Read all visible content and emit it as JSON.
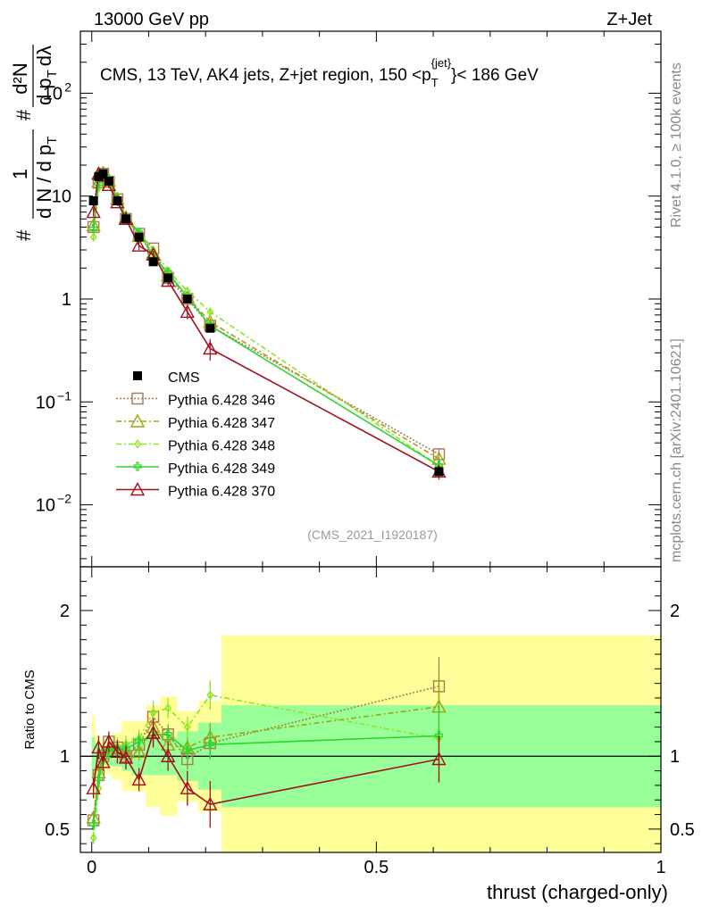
{
  "header": {
    "left": "13000 GeV pp",
    "right": "Z+Jet"
  },
  "side": {
    "rivet": "Rivet 4.1.0, ≥ 100k events",
    "mcplots": "mcplots.cern.ch [arXiv:2401.10621]"
  },
  "chart_data": {
    "type": "line",
    "title": "CMS, 13 TeV, AK4 jets, Z+jet region, 150 <p_T^{jet}< 186 GeV",
    "title_parts": {
      "prefix": "CMS, 13 TeV, AK4 jets, Z+jet region, 150 <p",
      "sup": "{jet}",
      "sub": "T",
      "suffix": "}< 186 GeV"
    },
    "analysis": "(CMS_2021_I1920187)",
    "xlabel": "thrust (charged-only)",
    "ylabel_main": "#frac{1}{dN/dp_T}#frac{d²N}{dp_T dλ}",
    "ylabel_parts": {
      "frac1_num": "1",
      "frac1_den": "d N / d p",
      "frac1_den_sub": "T",
      "frac2_num": "d²N",
      "frac2_den": "d p",
      "frac2_den_sub": "T",
      "frac2_den_tail": "dλ",
      "hash": "#"
    },
    "ylabel_ratio": "Ratio to CMS",
    "xlim": [
      -0.02,
      1.0
    ],
    "ylim_main": [
      0.0025,
      400
    ],
    "ylim_ratio": [
      0.34,
      2.3
    ],
    "x_ticks": [
      0,
      0.5,
      1
    ],
    "x_tick_labels": [
      "0",
      "0.5",
      "1"
    ],
    "y_ticks_main": [
      {
        "value": 0.01,
        "base": "10",
        "exp": "−2"
      },
      {
        "value": 0.1,
        "base": "10",
        "exp": "−1"
      },
      {
        "value": 1,
        "base": "1",
        "exp": ""
      },
      {
        "value": 10,
        "base": "10",
        "exp": ""
      },
      {
        "value": 100,
        "base": "10",
        "exp": "2"
      }
    ],
    "y_ticks_ratio": [
      {
        "value": 0.5,
        "label": "0.5"
      },
      {
        "value": 1,
        "label": "1"
      },
      {
        "value": 2,
        "label": "2"
      }
    ],
    "x": [
      0.003,
      0.012,
      0.02,
      0.03,
      0.045,
      0.06,
      0.083,
      0.108,
      0.134,
      0.168,
      0.208,
      0.61
    ],
    "bins": [
      0.0,
      0.006,
      0.016,
      0.025,
      0.036,
      0.053,
      0.07,
      0.095,
      0.12,
      0.15,
      0.187,
      0.228,
      1.0
    ],
    "data": {
      "name": "CMS",
      "values": [
        9.0,
        15.5,
        16.5,
        14.0,
        9.0,
        6.0,
        4.0,
        2.3,
        1.6,
        1.0,
        0.52,
        0.021
      ],
      "stat_band": [
        0.13,
        0.09,
        0.06,
        0.06,
        0.07,
        0.1,
        0.13,
        0.13,
        0.13,
        0.17,
        0.23,
        0.35
      ],
      "total_band": [
        0.28,
        0.14,
        0.11,
        0.12,
        0.16,
        0.24,
        0.24,
        0.35,
        0.41,
        0.31,
        0.38,
        0.83
      ]
    },
    "series": [
      {
        "name": "Pythia 6.428 346",
        "color": "#a57c52",
        "dash": "2,2",
        "marker": "square",
        "values": [
          5.0,
          13.5,
          16.5,
          13.8,
          9.3,
          6.0,
          4.3,
          3.1,
          1.6,
          1.0,
          0.55,
          0.031
        ],
        "ratio": [
          0.56,
          0.87,
          1.0,
          1.1,
          1.06,
          1.0,
          1.08,
          1.27,
          1.15,
          0.98,
          1.09,
          1.48
        ],
        "ratio_err": [
          0.04,
          0.05,
          0.04,
          0.05,
          0.06,
          0.06,
          0.06,
          0.08,
          0.07,
          0.07,
          0.1,
          0.2
        ]
      },
      {
        "name": "Pythia 6.428 347",
        "color": "#a3a30f",
        "dash": "6,3,2,3",
        "marker": "triangle",
        "values": [
          5.2,
          13.8,
          16.8,
          14.2,
          9.4,
          6.2,
          4.1,
          2.8,
          1.7,
          1.05,
          0.6,
          0.028
        ],
        "ratio": [
          0.58,
          0.89,
          1.02,
          1.1,
          1.05,
          1.02,
          1.03,
          1.2,
          1.08,
          1.06,
          1.13,
          1.34
        ],
        "ratio_err": [
          0.04,
          0.05,
          0.04,
          0.05,
          0.06,
          0.06,
          0.06,
          0.08,
          0.07,
          0.07,
          0.1,
          0.2
        ]
      },
      {
        "name": "Pythia 6.428 348",
        "color": "#8ce51e",
        "dash": "6,3,2,3",
        "marker": "diamond",
        "values": [
          4.0,
          12.0,
          16.0,
          14.8,
          9.6,
          6.5,
          4.5,
          3.0,
          1.9,
          1.2,
          0.75,
          0.024
        ],
        "ratio": [
          0.44,
          0.78,
          0.97,
          1.06,
          1.07,
          1.08,
          1.12,
          1.3,
          1.33,
          1.2,
          1.42,
          1.12
        ],
        "ratio_err": [
          0.04,
          0.05,
          0.04,
          0.05,
          0.06,
          0.06,
          0.06,
          0.08,
          0.07,
          0.07,
          0.1,
          0.2
        ]
      },
      {
        "name": "Pythia 6.428 349",
        "color": "#2fd52f",
        "dash": "",
        "marker": "cross",
        "values": [
          4.8,
          13.0,
          16.3,
          14.5,
          9.4,
          6.3,
          4.4,
          2.6,
          1.8,
          1.05,
          0.55,
          0.024
        ],
        "ratio": [
          0.53,
          0.84,
          0.99,
          1.04,
          1.05,
          1.05,
          1.1,
          1.15,
          1.15,
          1.04,
          1.08,
          1.14
        ],
        "ratio_err": [
          0.04,
          0.05,
          0.04,
          0.05,
          0.06,
          0.06,
          0.06,
          0.08,
          0.07,
          0.07,
          0.1,
          0.2
        ]
      },
      {
        "name": "Pythia 6.428 370",
        "color": "#a0111e",
        "dash": "",
        "marker": "triangle",
        "values": [
          7.0,
          16.5,
          15.8,
          12.8,
          8.7,
          6.0,
          3.3,
          2.7,
          1.5,
          0.75,
          0.33,
          0.021
        ],
        "ratio": [
          0.78,
          1.06,
          0.96,
          1.1,
          1.03,
          0.99,
          0.84,
          1.16,
          1.0,
          0.78,
          0.67,
          0.98
        ],
        "ratio_err": [
          0.07,
          0.08,
          0.06,
          0.07,
          0.08,
          0.08,
          0.08,
          0.1,
          0.1,
          0.12,
          0.16,
          0.16
        ]
      }
    ],
    "legend_placement": "left-middle"
  }
}
